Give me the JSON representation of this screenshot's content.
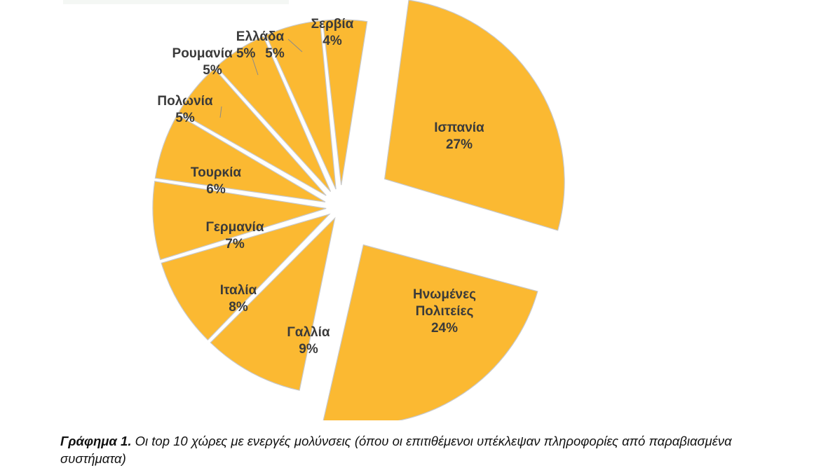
{
  "chart_data": {
    "type": "pie",
    "exploded": true,
    "color": "#fbb932",
    "edge_color": "#c8c8c8",
    "label_color": "#3a3a3a",
    "slices": [
      {
        "label": [
          "Ισπανία"
        ],
        "value": 27,
        "value_label": "27%"
      },
      {
        "label": [
          "Ηνωμένες",
          "Πολιτείες"
        ],
        "value": 24,
        "value_label": "24%"
      },
      {
        "label": [
          "Γαλλία"
        ],
        "value": 9,
        "value_label": "9%"
      },
      {
        "label": [
          "Ιταλία"
        ],
        "value": 8,
        "value_label": "8%"
      },
      {
        "label": [
          "Γερμανία"
        ],
        "value": 7,
        "value_label": "7%"
      },
      {
        "label": [
          "Τουρκία"
        ],
        "value": 6,
        "value_label": "6%"
      },
      {
        "label": [
          "Πολωνία"
        ],
        "value": 5,
        "value_label": "5%"
      },
      {
        "label": [
          "Ρουμανία"
        ],
        "value": 5,
        "value_label": "5%"
      },
      {
        "label": [
          "Ελλάδα"
        ],
        "value": 5,
        "value_label": "5%"
      },
      {
        "label": [
          "Σερβία"
        ],
        "value": 4,
        "value_label": "4%"
      }
    ]
  },
  "caption": {
    "label": "Γράφημα 1.",
    "text": "Οι top 10  χώρες με ενεργές μολύνσεις (όπου οι επιτιθέμενοι υπέκλεψαν πληροφορίες από παραβιασμένα συστήματα)"
  }
}
